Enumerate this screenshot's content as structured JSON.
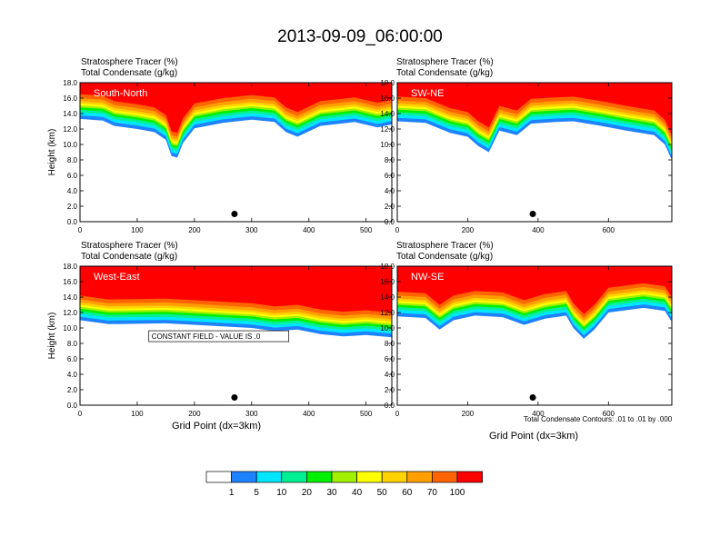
{
  "title": "2013-09-09_06:00:00",
  "colors": {
    "levels": [
      "#ffffff",
      "#1e82ff",
      "#00e6ff",
      "#00f096",
      "#00f000",
      "#a0f000",
      "#ffff00",
      "#ffd200",
      "#ffa000",
      "#ff6400",
      "#ff0000"
    ]
  },
  "chart_data": [
    {
      "type": "contour",
      "panel": "South-North",
      "title_lines": [
        "Stratosphere Tracer   (%)",
        "Total Condensate   (g/kg)"
      ],
      "ylabel": "Height (km)",
      "xlabel": "",
      "xlim": [
        0,
        545
      ],
      "ylim": [
        0,
        18
      ],
      "xticks": [
        0,
        100,
        200,
        300,
        400,
        500
      ],
      "yticks": [
        0.0,
        2.0,
        4.0,
        6.0,
        8.0,
        10.0,
        12.0,
        14.0,
        16.0,
        18.0
      ],
      "marker": {
        "x": 270,
        "y": 1.0
      },
      "tracer_lower_edge": [
        [
          0,
          13.3
        ],
        [
          40,
          13.1
        ],
        [
          60,
          12.4
        ],
        [
          100,
          12.0
        ],
        [
          130,
          11.6
        ],
        [
          150,
          10.6
        ],
        [
          160,
          8.5
        ],
        [
          170,
          8.3
        ],
        [
          180,
          10.2
        ],
        [
          200,
          12.1
        ],
        [
          250,
          12.8
        ],
        [
          300,
          13.2
        ],
        [
          340,
          12.9
        ],
        [
          360,
          11.6
        ],
        [
          380,
          11.0
        ],
        [
          420,
          12.4
        ],
        [
          480,
          12.9
        ],
        [
          520,
          12.2
        ],
        [
          545,
          12.6
        ]
      ]
    },
    {
      "type": "contour",
      "panel": "SW-NE",
      "title_lines": [
        "Stratosphere Tracer   (%)",
        "Total Condensate   (g/kg)"
      ],
      "ylabel": "",
      "xlabel": "",
      "xlim": [
        0,
        780
      ],
      "ylim": [
        0,
        18
      ],
      "xticks": [
        0,
        200,
        400,
        600
      ],
      "yticks": [
        0.0,
        2.0,
        4.0,
        6.0,
        8.0,
        10.0,
        12.0,
        14.0,
        16.0,
        18.0
      ],
      "marker": {
        "x": 385,
        "y": 1.0
      },
      "tracer_lower_edge": [
        [
          0,
          13.0
        ],
        [
          80,
          12.8
        ],
        [
          150,
          11.5
        ],
        [
          200,
          11.0
        ],
        [
          230,
          9.8
        ],
        [
          260,
          9.0
        ],
        [
          290,
          11.8
        ],
        [
          340,
          11.2
        ],
        [
          380,
          12.7
        ],
        [
          450,
          12.9
        ],
        [
          500,
          13.0
        ],
        [
          580,
          12.4
        ],
        [
          650,
          11.8
        ],
        [
          730,
          11.2
        ],
        [
          760,
          10.0
        ],
        [
          780,
          8.0
        ]
      ]
    },
    {
      "type": "contour",
      "panel": "West-East",
      "title_lines": [
        "Stratosphere Tracer   (%)",
        "Total Condensate   (g/kg)"
      ],
      "ylabel": "Height (km)",
      "xlabel": "Grid Point (dx=3km)",
      "xlim": [
        0,
        545
      ],
      "ylim": [
        0,
        18
      ],
      "xticks": [
        0,
        100,
        200,
        300,
        400,
        500
      ],
      "yticks": [
        0.0,
        2.0,
        4.0,
        6.0,
        8.0,
        10.0,
        12.0,
        14.0,
        16.0,
        18.0
      ],
      "marker": {
        "x": 270,
        "y": 1.0
      },
      "annotation": "CONSTANT FIELD - VALUE IS .0",
      "tracer_lower_edge": [
        [
          0,
          11.0
        ],
        [
          50,
          10.5
        ],
        [
          150,
          10.6
        ],
        [
          250,
          10.2
        ],
        [
          300,
          10.0
        ],
        [
          340,
          9.6
        ],
        [
          380,
          9.8
        ],
        [
          420,
          9.2
        ],
        [
          460,
          8.9
        ],
        [
          500,
          9.1
        ],
        [
          545,
          8.8
        ]
      ]
    },
    {
      "type": "contour",
      "panel": "NW-SE",
      "title_lines": [
        "Stratosphere Tracer   (%)",
        "Total Condensate   (g/kg)"
      ],
      "ylabel": "",
      "xlabel": "Grid Point (dx=3km)",
      "xlim": [
        0,
        780
      ],
      "ylim": [
        0,
        18
      ],
      "xticks": [
        0,
        200,
        400,
        600
      ],
      "yticks": [
        0.0,
        2.0,
        4.0,
        6.0,
        8.0,
        10.0,
        12.0,
        14.0,
        16.0,
        18.0
      ],
      "marker": {
        "x": 385,
        "y": 1.0
      },
      "annotation": "Total Condensate Contours: .01 to .01 by .000",
      "tracer_lower_edge": [
        [
          0,
          11.5
        ],
        [
          80,
          11.3
        ],
        [
          120,
          9.8
        ],
        [
          160,
          11.0
        ],
        [
          220,
          11.6
        ],
        [
          300,
          11.4
        ],
        [
          360,
          10.4
        ],
        [
          420,
          11.2
        ],
        [
          480,
          11.6
        ],
        [
          500,
          10.0
        ],
        [
          530,
          8.6
        ],
        [
          560,
          9.8
        ],
        [
          600,
          12.0
        ],
        [
          700,
          12.6
        ],
        [
          760,
          12.2
        ],
        [
          780,
          10.8
        ]
      ]
    }
  ],
  "colorbar": {
    "labels": [
      "1",
      "5",
      "10",
      "20",
      "30",
      "40",
      "50",
      "60",
      "70",
      "100"
    ]
  }
}
